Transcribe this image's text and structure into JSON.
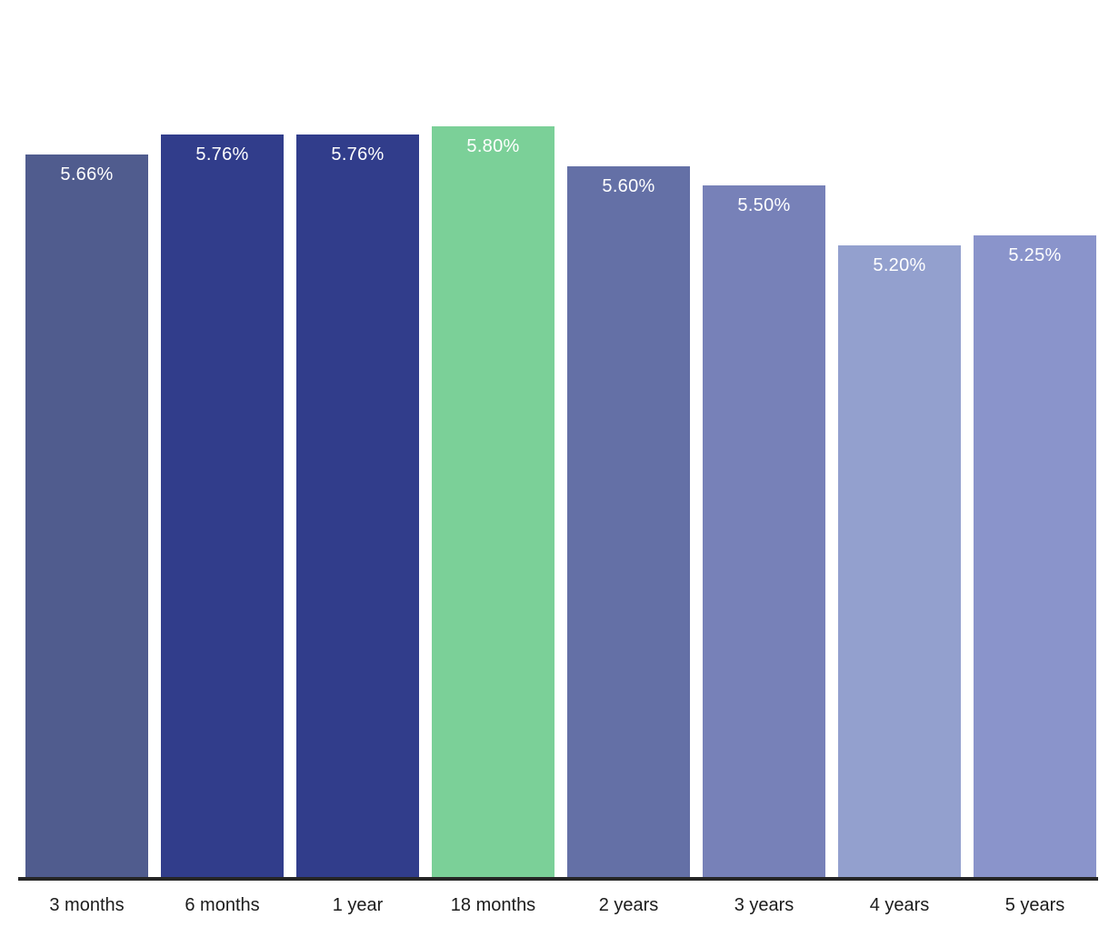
{
  "chart_data": {
    "type": "bar",
    "title": "",
    "xlabel": "",
    "ylabel": "",
    "categories": [
      "3 months",
      "6 months",
      "1 year",
      "18 months",
      "2 years",
      "3 years",
      "4 years",
      "5 years"
    ],
    "values": [
      5.66,
      5.76,
      5.76,
      5.8,
      5.6,
      5.5,
      5.2,
      5.25
    ],
    "value_labels": [
      "5.66%",
      "5.76%",
      "5.76%",
      "5.80%",
      "5.60%",
      "5.50%",
      "5.20%",
      "5.25%"
    ],
    "bar_colors": [
      "#505C8E",
      "#313D8B",
      "#313D8B",
      "#7BD098",
      "#6470A6",
      "#7781B8",
      "#93A0CE",
      "#8A94CB"
    ],
    "highlight_color": "#7BD098",
    "value_label_color": "#ffffff",
    "tick_label_color": "#1c1c1c",
    "axis_line_color": "#262626",
    "ylim": [
      2.0,
      6.44
    ],
    "grid": false,
    "legend": false,
    "legend_position": "none"
  }
}
